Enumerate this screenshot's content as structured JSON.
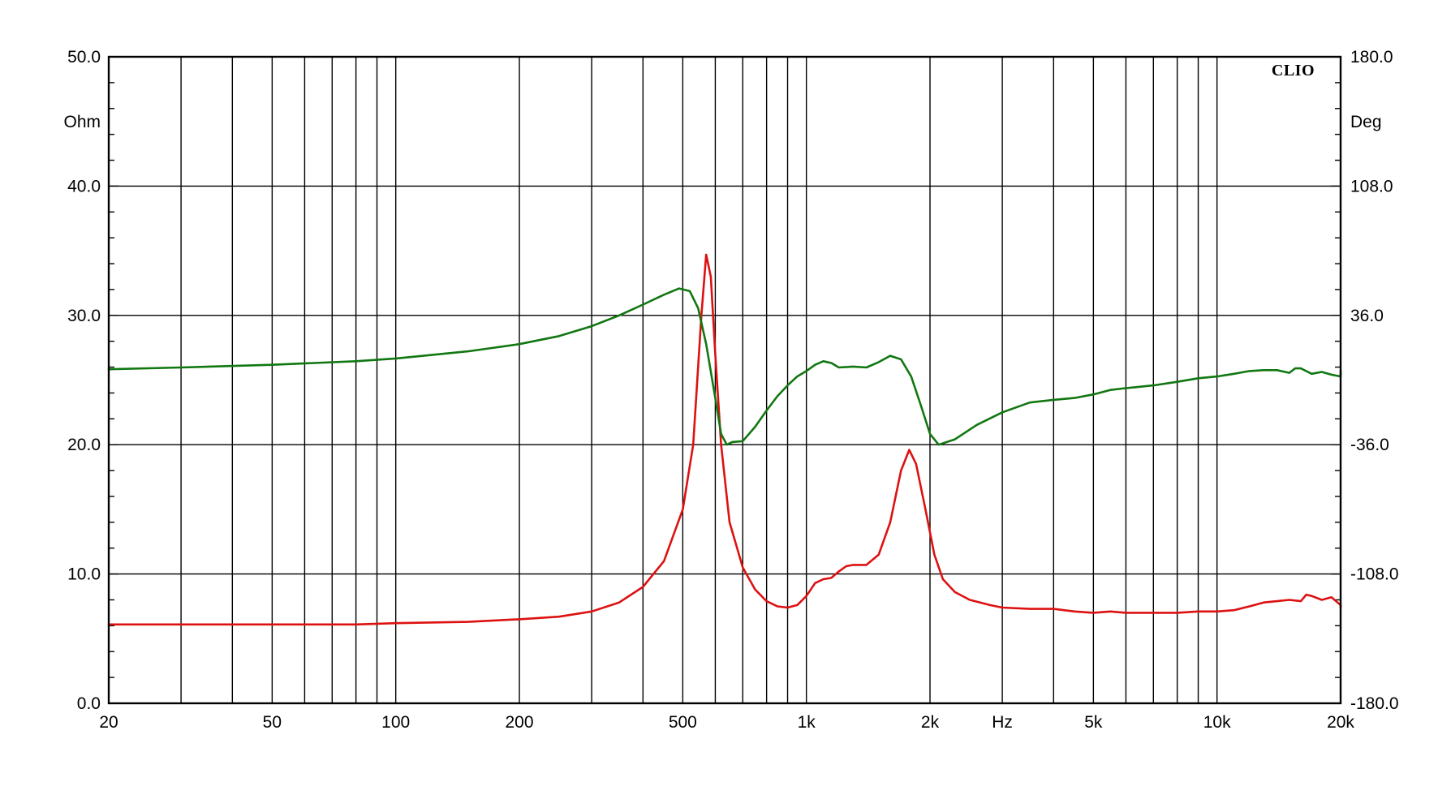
{
  "chart_data": {
    "type": "line",
    "logo": "CLIO",
    "x_scale": "log",
    "xlim": [
      20,
      20000
    ],
    "y_left": {
      "unit": "Ohm",
      "lim": [
        0,
        50
      ]
    },
    "y_right": {
      "unit": "Deg",
      "lim": [
        -180,
        180
      ]
    },
    "grid": true,
    "x_ticks": [
      {
        "value": 20,
        "label": "20"
      },
      {
        "value": 50,
        "label": "50"
      },
      {
        "value": 100,
        "label": "100"
      },
      {
        "value": 200,
        "label": "200"
      },
      {
        "value": 500,
        "label": "500"
      },
      {
        "value": 1000,
        "label": "1k"
      },
      {
        "value": 2000,
        "label": "2k"
      },
      {
        "value": 3000,
        "label": "Hz"
      },
      {
        "value": 5000,
        "label": "5k"
      },
      {
        "value": 10000,
        "label": "10k"
      },
      {
        "value": 20000,
        "label": "20k"
      }
    ],
    "y_left_ticks": [
      {
        "value": 0,
        "label": "0.0"
      },
      {
        "value": 10,
        "label": "10.0"
      },
      {
        "value": 20,
        "label": "20.0"
      },
      {
        "value": 30,
        "label": "30.0"
      },
      {
        "value": 40,
        "label": "40.0"
      },
      {
        "value": 50,
        "label": "50.0"
      }
    ],
    "y_right_ticks": [
      {
        "value": -180,
        "label": "-180.0"
      },
      {
        "value": -108,
        "label": "-108.0"
      },
      {
        "value": -36,
        "label": "-36.0"
      },
      {
        "value": 36,
        "label": "36.0"
      },
      {
        "value": 108,
        "label": "108.0"
      },
      {
        "value": 180,
        "label": "180.0"
      }
    ],
    "series": [
      {
        "axis": "left",
        "color": "#dd1111",
        "points": [
          [
            20,
            6.1
          ],
          [
            50,
            6.1
          ],
          [
            80,
            6.1
          ],
          [
            100,
            6.2
          ],
          [
            150,
            6.3
          ],
          [
            200,
            6.5
          ],
          [
            250,
            6.7
          ],
          [
            300,
            7.1
          ],
          [
            350,
            7.8
          ],
          [
            400,
            9.0
          ],
          [
            450,
            11.0
          ],
          [
            500,
            15.0
          ],
          [
            530,
            20.0
          ],
          [
            555,
            30.0
          ],
          [
            570,
            34.7
          ],
          [
            585,
            33.0
          ],
          [
            600,
            27.0
          ],
          [
            620,
            20.0
          ],
          [
            650,
            14.0
          ],
          [
            700,
            10.5
          ],
          [
            750,
            8.8
          ],
          [
            800,
            7.9
          ],
          [
            850,
            7.5
          ],
          [
            900,
            7.4
          ],
          [
            950,
            7.6
          ],
          [
            1000,
            8.3
          ],
          [
            1050,
            9.3
          ],
          [
            1100,
            9.6
          ],
          [
            1150,
            9.7
          ],
          [
            1200,
            10.2
          ],
          [
            1250,
            10.6
          ],
          [
            1300,
            10.7
          ],
          [
            1400,
            10.7
          ],
          [
            1500,
            11.5
          ],
          [
            1600,
            14.0
          ],
          [
            1700,
            18.0
          ],
          [
            1780,
            19.6
          ],
          [
            1850,
            18.5
          ],
          [
            1950,
            15.0
          ],
          [
            2050,
            11.5
          ],
          [
            2150,
            9.6
          ],
          [
            2300,
            8.6
          ],
          [
            2500,
            8.0
          ],
          [
            2800,
            7.6
          ],
          [
            3000,
            7.4
          ],
          [
            3500,
            7.3
          ],
          [
            4000,
            7.3
          ],
          [
            4500,
            7.1
          ],
          [
            5000,
            7.0
          ],
          [
            5500,
            7.1
          ],
          [
            6000,
            7.0
          ],
          [
            7000,
            7.0
          ],
          [
            8000,
            7.0
          ],
          [
            9000,
            7.1
          ],
          [
            10000,
            7.1
          ],
          [
            11000,
            7.2
          ],
          [
            12000,
            7.5
          ],
          [
            13000,
            7.8
          ],
          [
            14000,
            7.9
          ],
          [
            15000,
            8.0
          ],
          [
            16000,
            7.9
          ],
          [
            16500,
            8.4
          ],
          [
            17000,
            8.3
          ],
          [
            18000,
            8.0
          ],
          [
            19000,
            8.2
          ],
          [
            20000,
            7.6
          ],
          [
            21000,
            7.4
          ]
        ]
      },
      {
        "axis": "right",
        "color": "#117711",
        "points": [
          [
            20,
            6.0
          ],
          [
            30,
            7.0
          ],
          [
            50,
            8.5
          ],
          [
            80,
            10.5
          ],
          [
            100,
            12.0
          ],
          [
            150,
            16.0
          ],
          [
            200,
            20.0
          ],
          [
            250,
            24.5
          ],
          [
            300,
            30.0
          ],
          [
            350,
            36.0
          ],
          [
            400,
            42.0
          ],
          [
            450,
            47.5
          ],
          [
            490,
            51.0
          ],
          [
            520,
            49.5
          ],
          [
            545,
            40.0
          ],
          [
            570,
            20.0
          ],
          [
            600,
            -10.0
          ],
          [
            620,
            -30.0
          ],
          [
            640,
            -36.0
          ],
          [
            660,
            -34.5
          ],
          [
            700,
            -34.0
          ],
          [
            750,
            -26.0
          ],
          [
            800,
            -17.0
          ],
          [
            850,
            -9.0
          ],
          [
            900,
            -3.0
          ],
          [
            950,
            2.0
          ],
          [
            1000,
            5.0
          ],
          [
            1050,
            8.5
          ],
          [
            1100,
            10.5
          ],
          [
            1150,
            9.5
          ],
          [
            1200,
            7.0
          ],
          [
            1300,
            7.5
          ],
          [
            1400,
            7.0
          ],
          [
            1500,
            10.0
          ],
          [
            1600,
            13.5
          ],
          [
            1700,
            11.5
          ],
          [
            1800,
            2.0
          ],
          [
            1900,
            -14.0
          ],
          [
            2000,
            -30.0
          ],
          [
            2100,
            -36.0
          ],
          [
            2300,
            -33.0
          ],
          [
            2600,
            -25.0
          ],
          [
            3000,
            -18.0
          ],
          [
            3500,
            -12.5
          ],
          [
            4000,
            -11.0
          ],
          [
            4500,
            -10.0
          ],
          [
            5000,
            -8.0
          ],
          [
            5500,
            -5.5
          ],
          [
            6000,
            -4.5
          ],
          [
            7000,
            -3.0
          ],
          [
            8000,
            -1.0
          ],
          [
            9000,
            1.0
          ],
          [
            10000,
            2.0
          ],
          [
            11000,
            3.5
          ],
          [
            12000,
            5.0
          ],
          [
            13000,
            5.5
          ],
          [
            14000,
            5.5
          ],
          [
            15000,
            4.0
          ],
          [
            15500,
            6.5
          ],
          [
            16000,
            6.5
          ],
          [
            17000,
            3.5
          ],
          [
            18000,
            4.5
          ],
          [
            19000,
            3.0
          ],
          [
            20000,
            2.0
          ],
          [
            21000,
            5.5
          ]
        ]
      }
    ]
  }
}
